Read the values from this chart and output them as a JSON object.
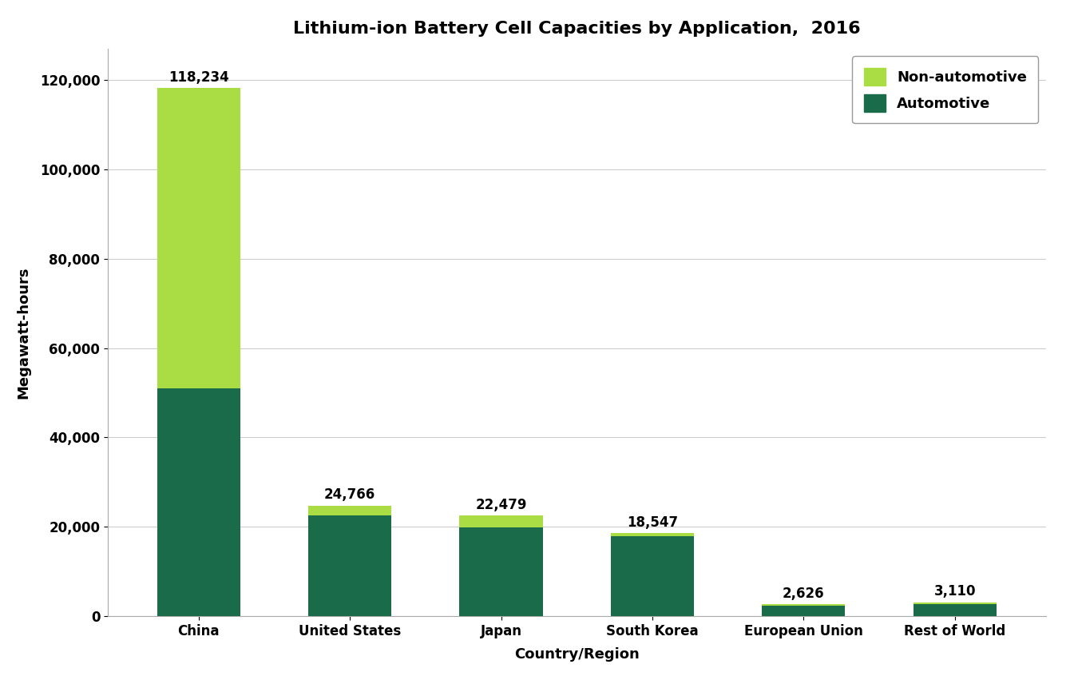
{
  "title": "Lithium-ion Battery Cell Capacities by Application,  2016",
  "xlabel": "Country/Region",
  "ylabel": "Megawatt-hours",
  "categories": [
    "China",
    "United States",
    "Japan",
    "South Korea",
    "European Union",
    "Rest of World"
  ],
  "automotive": [
    51000,
    22500,
    19800,
    17800,
    2300,
    2700
  ],
  "non_automotive_top": [
    67234,
    2266,
    2679,
    747,
    326,
    410
  ],
  "totals": [
    118234,
    24766,
    22479,
    18547,
    2626,
    3110
  ],
  "total_labels": [
    "118,234",
    "24,766",
    "22,479",
    "18,547",
    "2,626",
    "3,110"
  ],
  "automotive_color": "#1a6b4a",
  "non_automotive_color": "#aadd44",
  "bar_width": 0.55,
  "ylim": [
    0,
    127000
  ],
  "yticks": [
    0,
    20000,
    40000,
    60000,
    80000,
    100000,
    120000
  ],
  "ytick_labels": [
    "0",
    "20,000",
    "40,000",
    "60,000",
    "80,000",
    "100,000",
    "120,000"
  ],
  "legend_labels": [
    "Non-automotive",
    "Automotive"
  ],
  "legend_colors": [
    "#aadd44",
    "#1a6b4a"
  ],
  "background_color": "#ffffff",
  "grid_color": "#cccccc",
  "title_fontsize": 16,
  "axis_label_fontsize": 13,
  "tick_fontsize": 12,
  "annotation_fontsize": 12,
  "legend_fontsize": 13
}
